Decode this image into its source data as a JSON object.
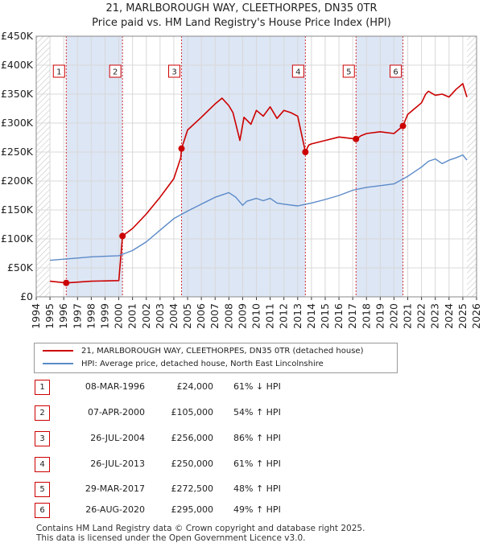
{
  "title_line1": "21, MARLBOROUGH WAY, CLEETHORPES, DN35 0TR",
  "title_line2": "Price paid vs. HM Land Registry's House Price Index (HPI)",
  "colors": {
    "property": "#cc0000",
    "hpi": "#5b8ac8",
    "shade": "#dde6f5",
    "marker_border": "#cc0000"
  },
  "chart_data": {
    "type": "line",
    "x_range": [
      1994,
      2026
    ],
    "ylim": [
      0,
      450000
    ],
    "yticks": [
      0,
      50000,
      100000,
      150000,
      200000,
      250000,
      300000,
      350000,
      400000,
      450000
    ],
    "ytick_labels": [
      "£0",
      "£50K",
      "£100K",
      "£150K",
      "£200K",
      "£250K",
      "£300K",
      "£350K",
      "£400K",
      "£450K"
    ],
    "xtick_labels": [
      "1994",
      "1995",
      "1996",
      "1997",
      "1998",
      "1999",
      "2000",
      "2001",
      "2002",
      "2003",
      "2004",
      "2005",
      "2006",
      "2007",
      "2008",
      "2009",
      "2010",
      "2011",
      "2012",
      "2013",
      "2014",
      "2015",
      "2016",
      "2017",
      "2018",
      "2019",
      "2020",
      "2021",
      "2022",
      "2023",
      "2024",
      "2025",
      "2026"
    ],
    "data_start": 1995.0,
    "data_end": 2025.3,
    "series": [
      {
        "name": "21, MARLBOROUGH WAY, CLEETHORPES, DN35 0TR (detached house)",
        "x": [
          1995.0,
          1996.18,
          1998.0,
          2000.0,
          2000.27,
          2001,
          2002,
          2003,
          2003.5,
          2004.0,
          2004.5,
          2004.56,
          2004.7,
          2005,
          2006,
          2007,
          2007.5,
          2008,
          2008.3,
          2008.8,
          2009.1,
          2009.6,
          2010,
          2010.5,
          2011,
          2011.5,
          2012,
          2012.5,
          2013,
          2013.56,
          2013.8,
          2014,
          2015,
          2016,
          2017.24,
          2017.6,
          2018,
          2019,
          2020.0,
          2020.65,
          2021,
          2021.5,
          2022,
          2022.3,
          2022.5,
          2023,
          2023.5,
          2024,
          2024.5,
          2025,
          2025.3
        ],
        "y": [
          27000,
          24000,
          27000,
          28000,
          105000,
          118000,
          143000,
          172000,
          188000,
          204000,
          240000,
          256000,
          266000,
          288000,
          310000,
          333000,
          343000,
          330000,
          318000,
          270000,
          310000,
          298000,
          322000,
          312000,
          328000,
          308000,
          322000,
          318000,
          312000,
          250000,
          262000,
          264000,
          270000,
          276000,
          272500,
          278000,
          282000,
          285000,
          282000,
          295000,
          315000,
          325000,
          335000,
          350000,
          355000,
          348000,
          350000,
          345000,
          358000,
          368000,
          345000
        ]
      },
      {
        "name": "HPI: Average price, detached house, North East Lincolnshire",
        "x": [
          1995.0,
          1996,
          1997,
          1998,
          1999,
          2000,
          2001,
          2002,
          2003,
          2004,
          2005,
          2006,
          2007,
          2007.5,
          2008,
          2008.5,
          2009,
          2009.3,
          2010,
          2010.5,
          2011,
          2011.5,
          2012,
          2013,
          2014,
          2015,
          2016,
          2017,
          2018,
          2019,
          2020,
          2021,
          2022,
          2022.5,
          2023,
          2023.5,
          2024,
          2024.5,
          2025,
          2025.3
        ],
        "y": [
          63000,
          65000,
          67000,
          69000,
          70000,
          71000,
          80000,
          95000,
          115000,
          135000,
          148000,
          160000,
          172000,
          176000,
          180000,
          172000,
          158000,
          165000,
          170000,
          166000,
          170000,
          162000,
          160000,
          157000,
          162000,
          168000,
          175000,
          184000,
          189000,
          192000,
          195000,
          208000,
          224000,
          234000,
          238000,
          230000,
          236000,
          240000,
          245000,
          236000
        ]
      }
    ],
    "sales": [
      {
        "label": "1",
        "x": 1996.18,
        "price": 24000
      },
      {
        "label": "2",
        "x": 2000.27,
        "price": 105000
      },
      {
        "label": "3",
        "x": 2004.56,
        "price": 256000
      },
      {
        "label": "4",
        "x": 2013.56,
        "price": 250000
      },
      {
        "label": "5",
        "x": 2017.24,
        "price": 272500
      },
      {
        "label": "6",
        "x": 2020.65,
        "price": 295000
      }
    ]
  },
  "legend": {
    "property_label": "21, MARLBOROUGH WAY, CLEETHORPES, DN35 0TR (detached house)",
    "hpi_label": "HPI: Average price, detached house, North East Lincolnshire"
  },
  "transactions": [
    {
      "num": "1",
      "date": "08-MAR-1996",
      "price": "£24,000",
      "hpi": "61% ↓ HPI"
    },
    {
      "num": "2",
      "date": "07-APR-2000",
      "price": "£105,000",
      "hpi": "54% ↑ HPI"
    },
    {
      "num": "3",
      "date": "26-JUL-2004",
      "price": "£256,000",
      "hpi": "86% ↑ HPI"
    },
    {
      "num": "4",
      "date": "26-JUL-2013",
      "price": "£250,000",
      "hpi": "61% ↑ HPI"
    },
    {
      "num": "5",
      "date": "29-MAR-2017",
      "price": "£272,500",
      "hpi": "48% ↑ HPI"
    },
    {
      "num": "6",
      "date": "26-AUG-2020",
      "price": "£295,000",
      "hpi": "49% ↑ HPI"
    }
  ],
  "footer_line1": "Contains HM Land Registry data © Crown copyright and database right 2025.",
  "footer_line2": "This data is licensed under the Open Government Licence v3.0."
}
